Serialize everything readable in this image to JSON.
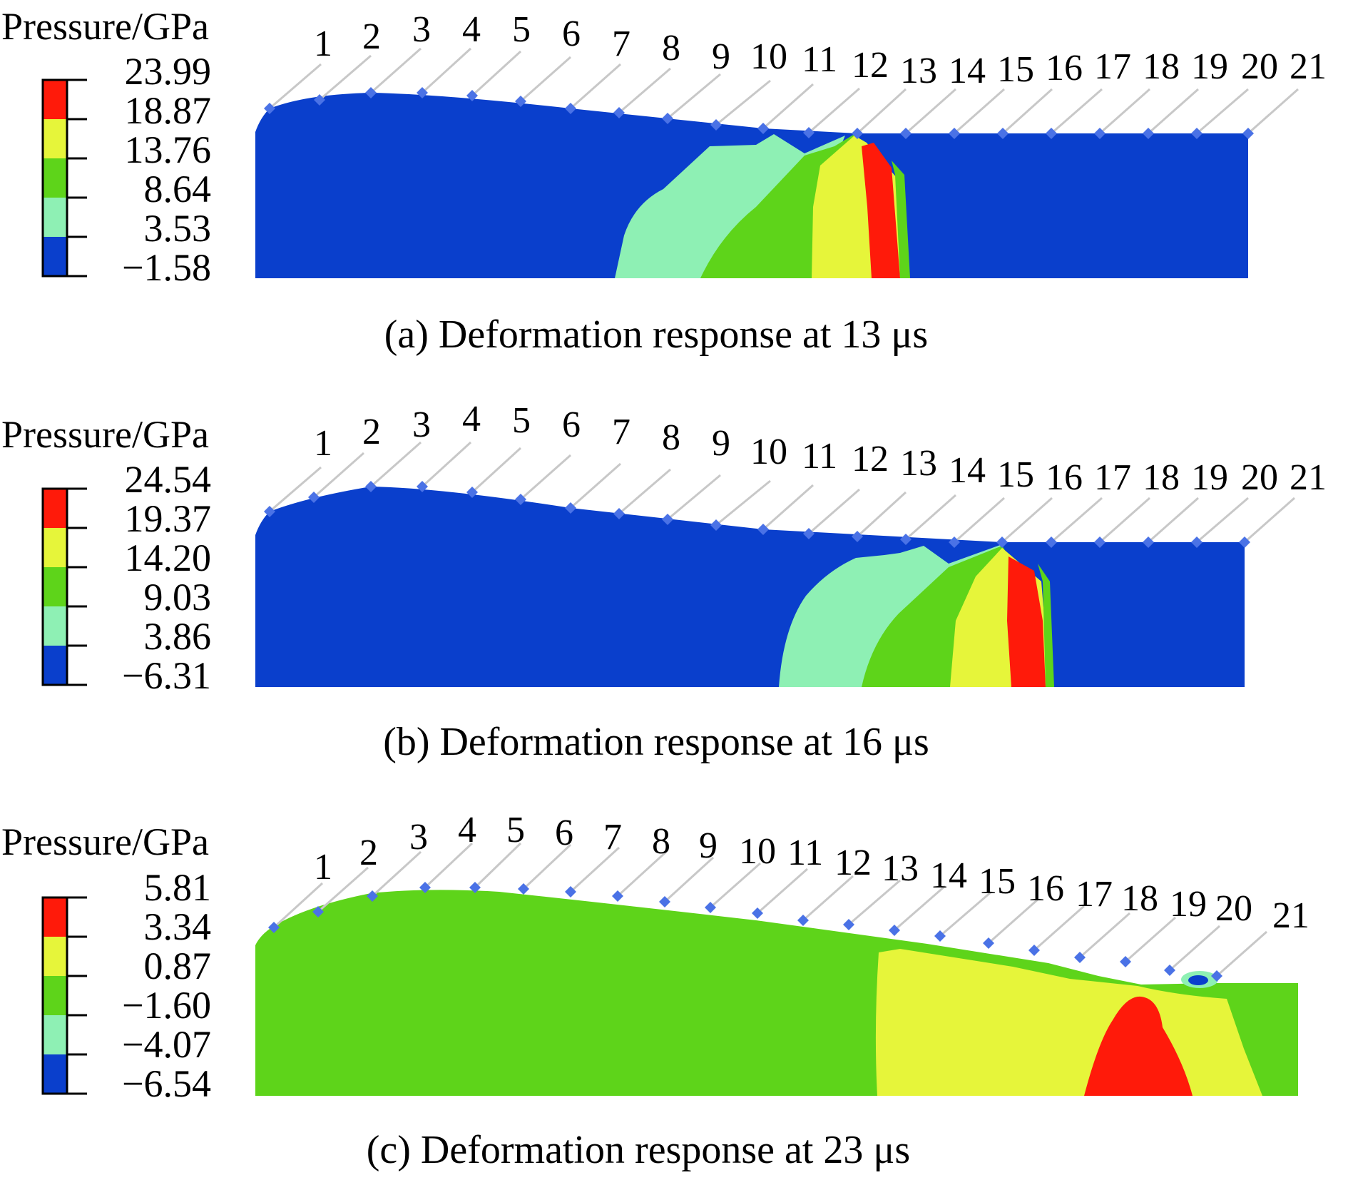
{
  "panels": [
    {
      "legend_title": "Pressure/GPa",
      "legend_values": [
        "23.99",
        "18.87",
        "13.76",
        "8.64",
        "3.53",
        "−1.58"
      ],
      "caption": "(a) Deformation response at 13 μs",
      "probe_labels": [
        "1",
        "2",
        "3",
        "4",
        "5",
        "6",
        "7",
        "8",
        "9",
        "10",
        "11",
        "12",
        "13",
        "14",
        "15",
        "16",
        "17",
        "18",
        "19",
        "20",
        "21"
      ]
    },
    {
      "legend_title": "Pressure/GPa",
      "legend_values": [
        "24.54",
        "19.37",
        "14.20",
        "9.03",
        "3.86",
        "−6.31"
      ],
      "caption": "(b) Deformation response at 16 μs",
      "probe_labels": [
        "1",
        "2",
        "3",
        "4",
        "5",
        "6",
        "7",
        "8",
        "9",
        "10",
        "11",
        "12",
        "13",
        "14",
        "15",
        "16",
        "17",
        "18",
        "19",
        "20",
        "21"
      ]
    },
    {
      "legend_title": "Pressure/GPa",
      "legend_values": [
        "5.81",
        "3.34",
        "0.87",
        "−1.60",
        "−4.07",
        "−6.54"
      ],
      "caption": "(c) Deformation response at 23 μs",
      "probe_labels": [
        "1",
        "2",
        "3",
        "4",
        "5",
        "6",
        "7",
        "8",
        "9",
        "10",
        "11",
        "12",
        "13",
        "14",
        "15",
        "16",
        "17",
        "18",
        "19",
        "20",
        "21"
      ]
    }
  ],
  "colors": {
    "band_red": "#ff1a0a",
    "band_yellow": "#e6f53a",
    "band_green": "#5ed41a",
    "band_light": "#8ef0b4",
    "band_blue": "#0a3fcc",
    "probe": "#4a72e6"
  }
}
